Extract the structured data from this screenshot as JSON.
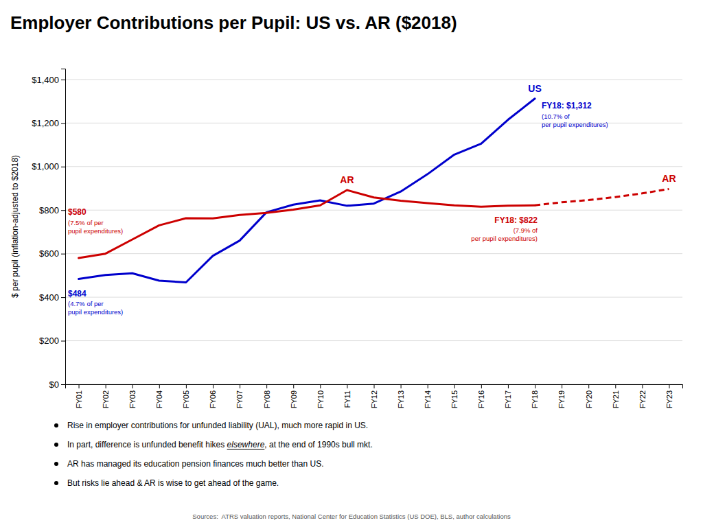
{
  "chart_data": {
    "type": "line",
    "title": "Employer Contributions per Pupil: US vs. AR ($2018)",
    "ylabel": "$ per pupil (inflation-adjusted to $2018)",
    "source": "Sources:  ATRS valuation reports, National Center for Education Statistics (US DOE), BLS, author calculations",
    "categories": [
      "FY01",
      "FY02",
      "FY03",
      "FY04",
      "FY05",
      "FY06",
      "FY07",
      "FY08",
      "FY09",
      "FY10",
      "FY11",
      "FY12",
      "FY13",
      "FY14",
      "FY15",
      "FY16",
      "FY17",
      "FY18",
      "FY19",
      "FY20",
      "FY21",
      "FY22",
      "FY23"
    ],
    "series": [
      {
        "name": "US",
        "color": "#0000CC",
        "line_style": "solid",
        "values": [
          484,
          502,
          510,
          476,
          468,
          590,
          660,
          790,
          825,
          845,
          820,
          830,
          885,
          965,
          1055,
          1105,
          1215,
          1312,
          null,
          null,
          null,
          null,
          null
        ]
      },
      {
        "name": "AR",
        "color": "#CC0000",
        "line_style": "solid",
        "values": [
          580,
          600,
          665,
          730,
          763,
          762,
          778,
          787,
          802,
          822,
          892,
          858,
          843,
          832,
          822,
          816,
          820,
          822,
          null,
          null,
          null,
          null,
          null
        ]
      },
      {
        "name": "AR",
        "color": "#CC0000",
        "line_style": "dashed",
        "values": [
          null,
          null,
          null,
          null,
          null,
          null,
          null,
          null,
          null,
          null,
          null,
          null,
          null,
          null,
          null,
          null,
          null,
          822,
          836,
          846,
          860,
          877,
          897
        ]
      }
    ],
    "ylim": [
      0,
      1450
    ],
    "yticks": [
      {
        "value": 0,
        "label": "$0"
      },
      {
        "value": 200,
        "label": "$200"
      },
      {
        "value": 400,
        "label": "$400"
      },
      {
        "value": 600,
        "label": "$600"
      },
      {
        "value": 800,
        "label": "$800"
      },
      {
        "value": 1000,
        "label": "$1,000"
      },
      {
        "value": 1200,
        "label": "$1,200"
      },
      {
        "value": 1400,
        "label": "$1,400"
      }
    ],
    "grid": true,
    "annotations": [
      {
        "text": "$484",
        "note": "(4.7% of per\npupil expenditures)",
        "series": "US",
        "x": "FY01"
      },
      {
        "text": "$580",
        "note": "(7.5% of per\npupil expenditures)",
        "series": "AR",
        "x": "FY01"
      },
      {
        "text": "FY18: $1,312",
        "note": "(10.7% of\nper pupil expenditures)",
        "series": "US",
        "x": "FY18"
      },
      {
        "text": "FY18: $822",
        "note": "(7.9% of\nper pupil expenditures)",
        "series": "AR",
        "x": "FY18"
      }
    ],
    "notes": [
      "Rise in employer contributions for unfunded liability (UAL), much more rapid in US.",
      [
        "In part, difference is unfunded benefit hikes ",
        "elsewhere",
        ", at the end of 1990s bull mkt."
      ],
      "AR has managed its education pension finances much better than US.",
      "But risks lie ahead & AR is wise to get ahead of the game."
    ]
  }
}
